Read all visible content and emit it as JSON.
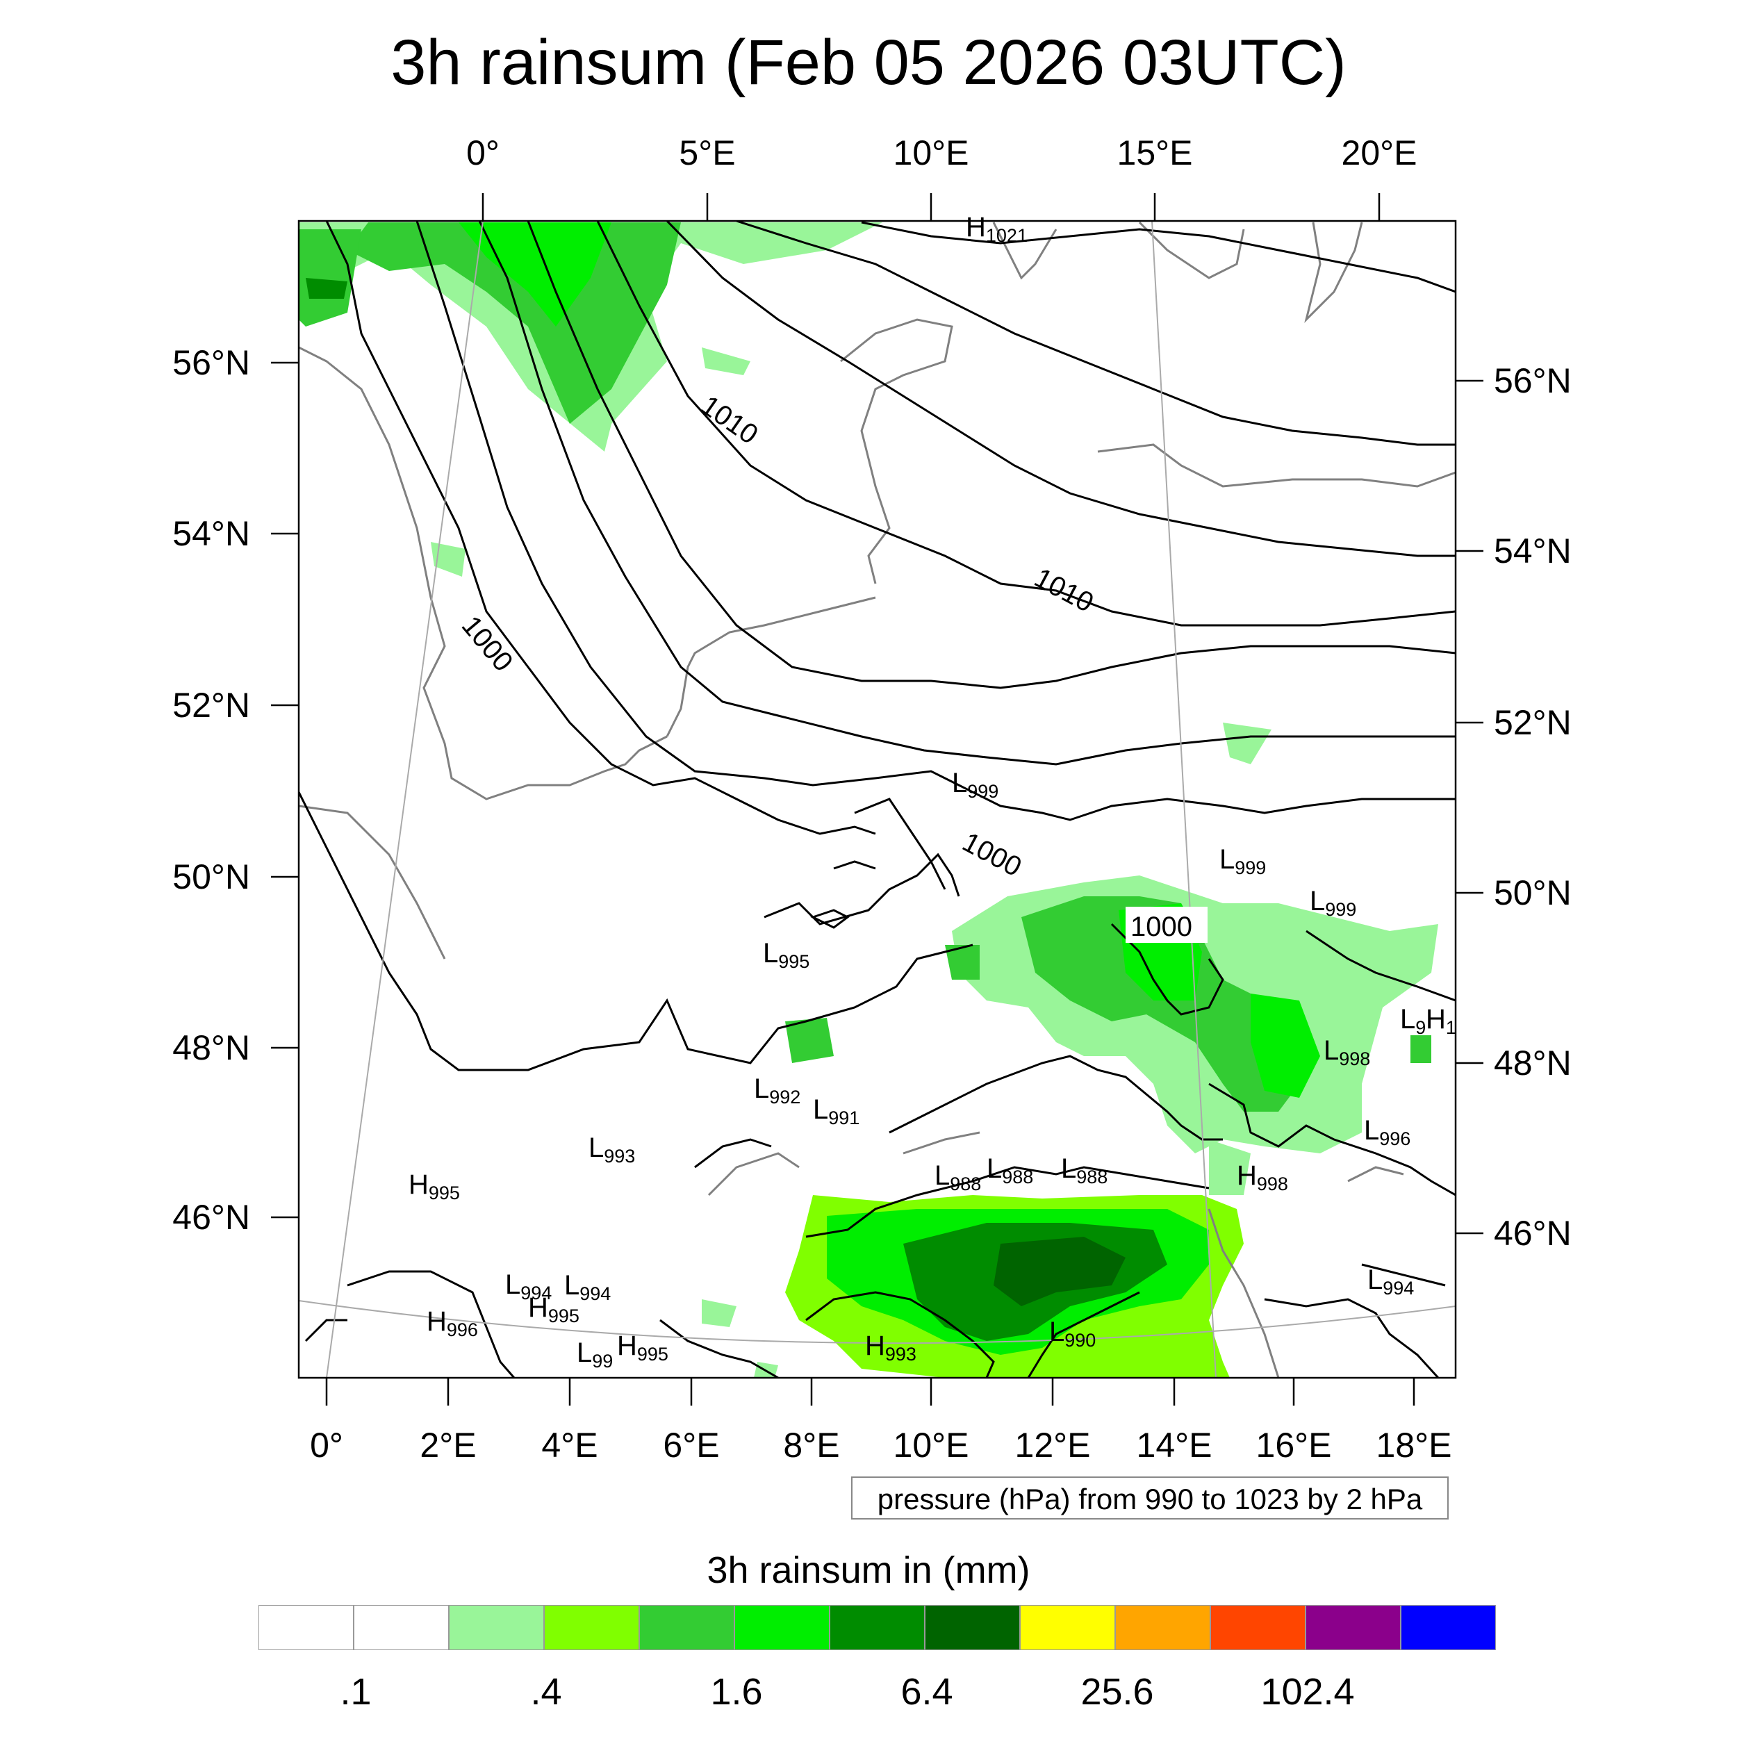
{
  "title": "3h rainsum (Feb 05 2026 03UTC)",
  "axes": {
    "top_lon_ticks": [
      "0°",
      "5°E",
      "10°E",
      "15°E",
      "20°E"
    ],
    "bottom_lon_ticks": [
      "0°",
      "2°E",
      "4°E",
      "6°E",
      "8°E",
      "10°E",
      "12°E",
      "14°E",
      "16°E",
      "18°E"
    ],
    "left_lat_ticks": [
      "56°N",
      "54°N",
      "52°N",
      "50°N",
      "48°N",
      "46°N"
    ],
    "right_lat_ticks": [
      "56°N",
      "54°N",
      "52°N",
      "50°N",
      "48°N",
      "46°N"
    ]
  },
  "contour_labels": [
    {
      "text": "1010"
    },
    {
      "text": "1010"
    },
    {
      "text": "1000"
    },
    {
      "text": "1000"
    },
    {
      "text": "1000"
    }
  ],
  "pressure_centers": [
    {
      "type": "H",
      "value": "1021"
    },
    {
      "type": "L",
      "value": "999"
    },
    {
      "type": "L",
      "value": "999"
    },
    {
      "type": "L",
      "value": "999"
    },
    {
      "type": "L",
      "value": "995"
    },
    {
      "type": "L",
      "value": "992"
    },
    {
      "type": "L",
      "value": "991"
    },
    {
      "type": "L",
      "value": "993"
    },
    {
      "type": "H",
      "value": "995"
    },
    {
      "type": "L",
      "value": "988"
    },
    {
      "type": "L",
      "value": "988"
    },
    {
      "type": "L",
      "value": "988"
    },
    {
      "type": "H",
      "value": "998"
    },
    {
      "type": "L",
      "value": "998"
    },
    {
      "type": "L",
      "value": "996"
    },
    {
      "type": "L",
      "value": "994"
    },
    {
      "type": "L",
      "value": "994"
    },
    {
      "type": "L",
      "value": "994"
    },
    {
      "type": "H",
      "value": "995"
    },
    {
      "type": "H",
      "value": "996"
    },
    {
      "type": "L",
      "value": "99"
    },
    {
      "type": "H",
      "value": "995"
    },
    {
      "type": "H",
      "value": "993"
    },
    {
      "type": "L",
      "value": "990"
    },
    {
      "type": "L",
      "value": "9"
    },
    {
      "type": "H",
      "value": "1"
    }
  ],
  "pressure_note": "pressure (hPa) from 990 to 1023 by 2 hPa",
  "legend": {
    "title": "3h rainsum in (mm)",
    "colors": [
      "#ffffff",
      "#ffffff",
      "#99f599",
      "#80ff00",
      "#33cc33",
      "#00ee00",
      "#008c00",
      "#006400",
      "#ffff00",
      "#ffa500",
      "#ff4500",
      "#8b008b",
      "#0000ff"
    ],
    "labels": [
      ".1",
      ".4",
      "1.6",
      "6.4",
      "25.6",
      "102.4"
    ]
  }
}
